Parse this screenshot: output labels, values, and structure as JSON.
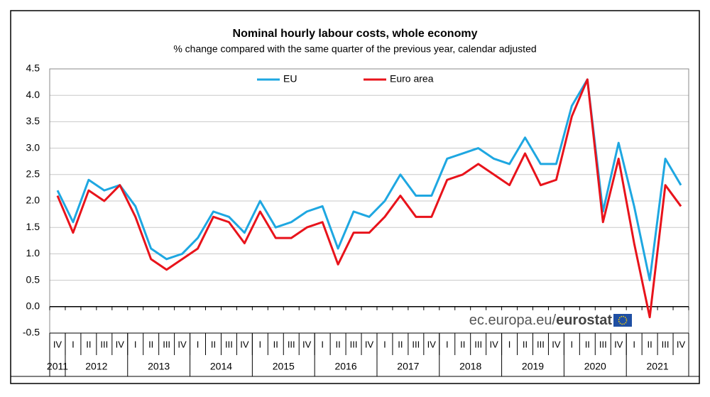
{
  "chart_data": {
    "type": "line",
    "title": "Nominal hourly labour costs, whole economy",
    "subtitle": "% change compared with the same quarter of the previous  year, calendar adjusted",
    "categories": [
      "IV",
      "I",
      "II",
      "III",
      "IV",
      "I",
      "II",
      "III",
      "IV",
      "I",
      "II",
      "III",
      "IV",
      "I",
      "II",
      "III",
      "IV",
      "I",
      "II",
      "III",
      "IV",
      "I",
      "II",
      "III",
      "IV",
      "I",
      "II",
      "III",
      "IV",
      "I",
      "II",
      "III",
      "IV",
      "I",
      "II",
      "III",
      "IV",
      "I",
      "II",
      "III",
      "IV"
    ],
    "years": [
      "2011",
      "2012",
      "2013",
      "2014",
      "2015",
      "2016",
      "2017",
      "2018",
      "2019",
      "2020",
      "2021"
    ],
    "series": [
      {
        "name": "EU",
        "color": "#1ea7e1",
        "values": [
          2.2,
          1.6,
          2.4,
          2.2,
          2.3,
          1.9,
          1.1,
          0.9,
          1.0,
          1.3,
          1.8,
          1.7,
          1.4,
          2.0,
          1.5,
          1.6,
          1.8,
          1.9,
          1.1,
          1.8,
          1.7,
          2.0,
          2.5,
          2.1,
          2.1,
          2.8,
          2.9,
          3.0,
          2.8,
          2.7,
          3.2,
          2.7,
          2.7,
          3.8,
          4.3,
          1.8,
          3.1,
          1.9,
          0.5,
          2.8,
          2.3
        ]
      },
      {
        "name": "Euro area",
        "color": "#e8131b",
        "values": [
          2.1,
          1.4,
          2.2,
          2.0,
          2.3,
          1.7,
          0.9,
          0.7,
          0.9,
          1.1,
          1.7,
          1.6,
          1.2,
          1.8,
          1.3,
          1.3,
          1.5,
          1.6,
          0.8,
          1.4,
          1.4,
          1.7,
          2.1,
          1.7,
          1.7,
          2.4,
          2.5,
          2.7,
          2.5,
          2.3,
          2.9,
          2.3,
          2.4,
          3.6,
          4.3,
          1.6,
          2.8,
          1.2,
          -0.2,
          2.3,
          1.9
        ]
      }
    ],
    "ylim": [
      -0.5,
      4.5
    ],
    "yticks": [
      -0.5,
      {
        "value": 0,
        "label": "0.0"
      },
      0.5,
      {
        "value": 1,
        "label": "1.0"
      },
      1.5,
      {
        "value": 2,
        "label": "2.0"
      },
      2.5,
      {
        "value": 3,
        "label": "3.0"
      },
      3.5,
      {
        "value": 4,
        "label": "4.0"
      },
      4.5
    ],
    "grid": true,
    "source": {
      "site": "ec.europa.eu/",
      "brand": "eurostat"
    }
  }
}
